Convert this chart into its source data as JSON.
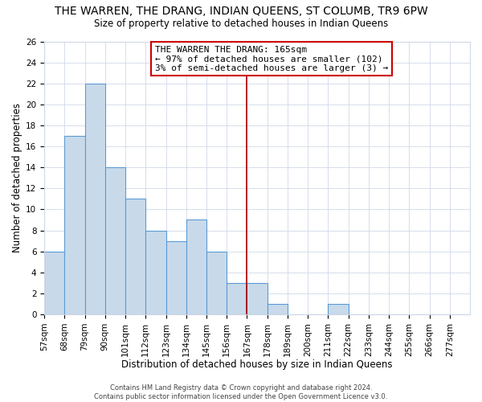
{
  "title": "THE WARREN, THE DRANG, INDIAN QUEENS, ST COLUMB, TR9 6PW",
  "subtitle": "Size of property relative to detached houses in Indian Queens",
  "xlabel": "Distribution of detached houses by size in Indian Queens",
  "ylabel": "Number of detached properties",
  "bin_labels": [
    "57sqm",
    "68sqm",
    "79sqm",
    "90sqm",
    "101sqm",
    "112sqm",
    "123sqm",
    "134sqm",
    "145sqm",
    "156sqm",
    "167sqm",
    "178sqm",
    "189sqm",
    "200sqm",
    "211sqm",
    "222sqm",
    "233sqm",
    "244sqm",
    "255sqm",
    "266sqm",
    "277sqm"
  ],
  "bin_edges": [
    57,
    68,
    79,
    90,
    101,
    112,
    123,
    134,
    145,
    156,
    167,
    178,
    189,
    200,
    211,
    222,
    233,
    244,
    255,
    266,
    277
  ],
  "bar_values": [
    6,
    17,
    22,
    14,
    11,
    8,
    7,
    9,
    6,
    3,
    3,
    1,
    0,
    0,
    1,
    0,
    0,
    0,
    0,
    0,
    0
  ],
  "bar_color": "#c8daea",
  "bar_edge_color": "#5b9bd5",
  "property_line_x": 167,
  "property_line_color": "#aa0000",
  "annotation_title": "THE WARREN THE DRANG: 165sqm",
  "annotation_line1": "← 97% of detached houses are smaller (102)",
  "annotation_line2": "3% of semi-detached houses are larger (3) →",
  "annotation_box_color": "#ffffff",
  "annotation_box_edge_color": "#cc0000",
  "ylim": [
    0,
    26
  ],
  "yticks": [
    0,
    2,
    4,
    6,
    8,
    10,
    12,
    14,
    16,
    18,
    20,
    22,
    24,
    26
  ],
  "footer_line1": "Contains HM Land Registry data © Crown copyright and database right 2024.",
  "footer_line2": "Contains public sector information licensed under the Open Government Licence v3.0.",
  "background_color": "#ffffff",
  "grid_color": "#d0d8e8",
  "title_fontsize": 10,
  "subtitle_fontsize": 8.5,
  "xlabel_fontsize": 8.5,
  "ylabel_fontsize": 8.5,
  "tick_fontsize": 7.5,
  "annotation_fontsize": 8,
  "footer_fontsize": 6
}
